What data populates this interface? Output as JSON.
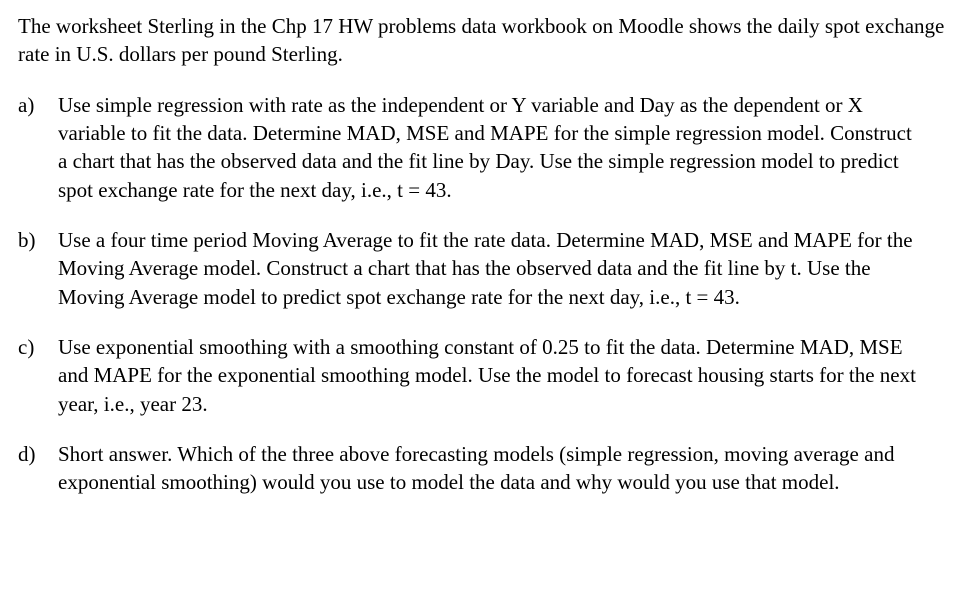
{
  "intro": "The worksheet Sterling in the Chp 17 HW problems data workbook on Moodle shows the daily spot exchange rate in U.S. dollars per pound Sterling.",
  "questions": [
    {
      "label": "a)",
      "body": "Use simple regression with rate as the independent or Y variable and Day as the dependent or X variable to fit the data.  Determine MAD, MSE and MAPE for the simple regression model.  Construct a chart that has the observed data and the fit line by Day.  Use the simple regression model to predict spot exchange rate for the next day, i.e., t = 43."
    },
    {
      "label": "b)",
      "body": "Use a four time period Moving Average to fit the rate data.  Determine MAD, MSE and MAPE for the Moving Average model.  Construct a chart that has the observed data and the fit line by t.  Use the Moving Average model to predict spot exchange rate for the next day, i.e., t = 43."
    },
    {
      "label": "c)",
      "body": "Use exponential smoothing with a smoothing constant of 0.25 to fit the data.  Determine MAD, MSE and MAPE for the exponential smoothing model. Use the model to forecast housing starts for the next year, i.e., year 23."
    },
    {
      "label": "d)",
      "body": "Short answer.  Which of the three above forecasting models (simple regression, moving average and exponential smoothing) would you use to model the data and why would you use that model."
    }
  ]
}
